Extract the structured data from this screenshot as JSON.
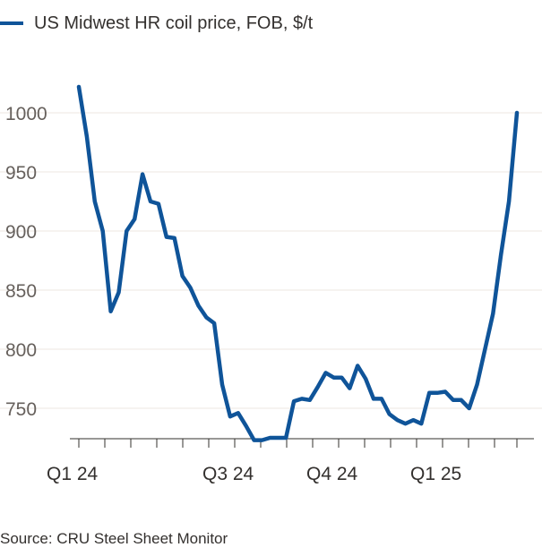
{
  "chart_data": {
    "type": "line",
    "title": "",
    "xlabel": "",
    "ylabel": "",
    "ylim": [
      720,
      1025
    ],
    "y_ticks": [
      "750",
      "800",
      "850",
      "900",
      "950",
      "1000"
    ],
    "x_ticks": [
      "Q1 24",
      "Q3 24",
      "Q4 24",
      "Q1 25"
    ],
    "grid": true,
    "legend_position": "top-left",
    "series": [
      {
        "name": "US Midwest HR coil price, FOB, $/t",
        "color": "#0f5499",
        "values": [
          1022,
          980,
          925,
          900,
          832,
          848,
          900,
          910,
          948,
          925,
          923,
          895,
          894,
          862,
          852,
          837,
          827,
          822,
          770,
          743,
          746,
          735,
          723,
          723,
          725,
          725,
          725,
          756,
          758,
          757,
          768,
          780,
          776,
          776,
          767,
          786,
          775,
          758,
          758,
          745,
          740,
          737,
          740,
          737,
          763,
          763,
          764,
          757,
          757,
          750,
          770,
          800,
          830,
          880,
          925,
          1000
        ]
      }
    ]
  },
  "legend": {
    "label": "US Midwest HR coil price, FOB, $/t"
  },
  "footer": {
    "source": "Source: CRU Steel Sheet Monitor"
  },
  "colors": {
    "series": "#0f5499",
    "grid": "#ece7e2",
    "axis": "#33302e"
  }
}
